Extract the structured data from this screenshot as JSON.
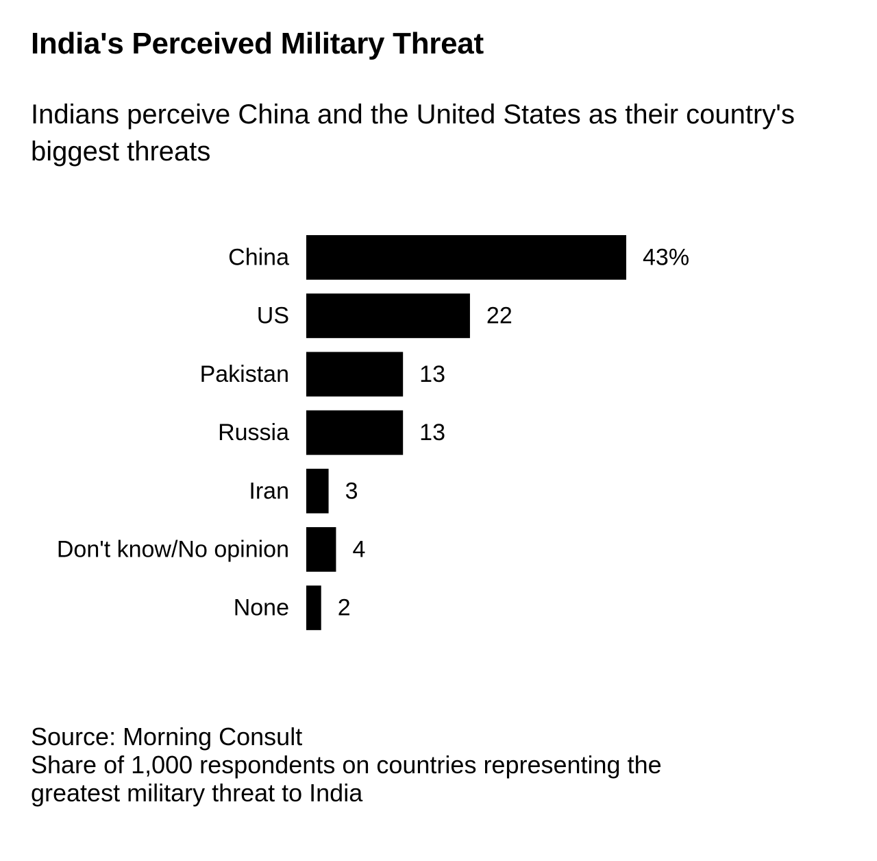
{
  "chart_data": {
    "type": "bar",
    "orientation": "horizontal",
    "title": "India's Perceived Military Threat",
    "subtitle": "Indians perceive China and the United States as their country's biggest threats",
    "categories": [
      "China",
      "US",
      "Pakistan",
      "Russia",
      "Iran",
      "Don't know/No opinion",
      "None"
    ],
    "values": [
      43,
      22,
      13,
      13,
      3,
      4,
      2
    ],
    "value_labels": [
      "43%",
      "22",
      "13",
      "13",
      "3",
      "4",
      "2"
    ],
    "xlabel": "",
    "ylabel": "",
    "xlim": [
      0,
      43
    ],
    "grid": false,
    "bar_color": "#000000"
  },
  "footer": {
    "source": "Source: Morning Consult",
    "note_line1": "Share of 1,000 respondents on countries representing the",
    "note_line2": "greatest military threat to India"
  }
}
